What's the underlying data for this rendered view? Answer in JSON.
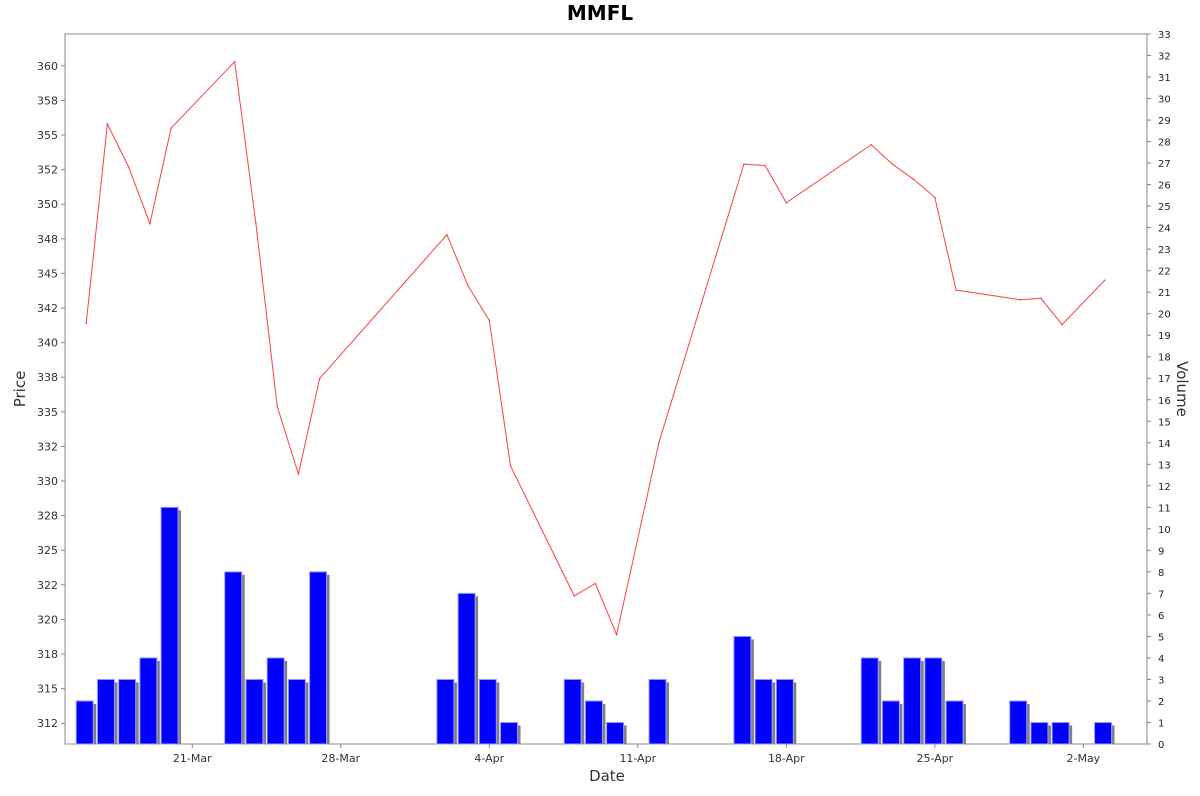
{
  "chart_data": {
    "type": "line",
    "title": "MMFL",
    "xlabel": "Date",
    "ylabel": "Price",
    "y2label": "Volume",
    "x_range": [
      "2022-03-15",
      "2022-05-05"
    ],
    "price_ylim": [
      311.0,
      362.3
    ],
    "volume_ylim": [
      0,
      33
    ],
    "grid": false,
    "x_tick_labels": [
      {
        "date": "2022-03-21",
        "label": "21-Mar"
      },
      {
        "date": "2022-03-28",
        "label": "28-Mar"
      },
      {
        "date": "2022-04-04",
        "label": "4-Apr"
      },
      {
        "date": "2022-04-11",
        "label": "11-Apr"
      },
      {
        "date": "2022-04-18",
        "label": "18-Apr"
      },
      {
        "date": "2022-04-25",
        "label": "25-Apr"
      },
      {
        "date": "2022-05-02",
        "label": "2-May"
      }
    ],
    "price_ticks": [
      {
        "value": 312.5,
        "label": "312"
      },
      {
        "value": 315.0,
        "label": "315"
      },
      {
        "value": 317.5,
        "label": "318"
      },
      {
        "value": 320.0,
        "label": "320"
      },
      {
        "value": 322.5,
        "label": "322"
      },
      {
        "value": 325.0,
        "label": "325"
      },
      {
        "value": 327.5,
        "label": "328"
      },
      {
        "value": 330.0,
        "label": "330"
      },
      {
        "value": 332.5,
        "label": "332"
      },
      {
        "value": 335.0,
        "label": "335"
      },
      {
        "value": 337.5,
        "label": "338"
      },
      {
        "value": 340.0,
        "label": "340"
      },
      {
        "value": 342.5,
        "label": "342"
      },
      {
        "value": 345.0,
        "label": "345"
      },
      {
        "value": 347.5,
        "label": "348"
      },
      {
        "value": 350.0,
        "label": "350"
      },
      {
        "value": 352.5,
        "label": "352"
      },
      {
        "value": 355.0,
        "label": "355"
      },
      {
        "value": 357.5,
        "label": "358"
      },
      {
        "value": 360.0,
        "label": "360"
      }
    ],
    "volume_ticks": [
      "0",
      "1",
      "2",
      "3",
      "4",
      "5",
      "6",
      "7",
      "8",
      "9",
      "10",
      "11",
      "12",
      "13",
      "14",
      "15",
      "16",
      "17",
      "18",
      "19",
      "20",
      "21",
      "22",
      "23",
      "24",
      "25",
      "26",
      "27",
      "28",
      "29",
      "30",
      "31",
      "32",
      "33"
    ],
    "colors": {
      "price_line": "#ff4040",
      "volume_bar": "#0000ff",
      "volume_bar_edge": "#9999ff",
      "volume_shadow": "#808080",
      "axis": "#888888"
    },
    "series": [
      {
        "kind": "price",
        "points": [
          {
            "date": "2022-03-16",
            "value": 341.4
          },
          {
            "date": "2022-03-17",
            "value": 355.8
          },
          {
            "date": "2022-03-18",
            "value": 352.7
          },
          {
            "date": "2022-03-19",
            "value": 348.6
          },
          {
            "date": "2022-03-20",
            "value": 355.5
          },
          {
            "date": "2022-03-23",
            "value": 360.3
          },
          {
            "date": "2022-03-24",
            "value": 348.6
          },
          {
            "date": "2022-03-25",
            "value": 335.4
          },
          {
            "date": "2022-03-26",
            "value": 330.5
          },
          {
            "date": "2022-03-27",
            "value": 337.4
          },
          {
            "date": "2022-04-02",
            "value": 347.8
          },
          {
            "date": "2022-04-03",
            "value": 344.1
          },
          {
            "date": "2022-04-04",
            "value": 341.6
          },
          {
            "date": "2022-04-05",
            "value": 331.1
          },
          {
            "date": "2022-04-08",
            "value": 321.7
          },
          {
            "date": "2022-04-09",
            "value": 322.6
          },
          {
            "date": "2022-04-10",
            "value": 318.9
          },
          {
            "date": "2022-04-12",
            "value": 332.8
          },
          {
            "date": "2022-04-16",
            "value": 352.9
          },
          {
            "date": "2022-04-17",
            "value": 352.8
          },
          {
            "date": "2022-04-18",
            "value": 350.1
          },
          {
            "date": "2022-04-22",
            "value": 354.3
          },
          {
            "date": "2022-04-23",
            "value": 352.9
          },
          {
            "date": "2022-04-24",
            "value": 351.8
          },
          {
            "date": "2022-04-25",
            "value": 350.5
          },
          {
            "date": "2022-04-26",
            "value": 343.8
          },
          {
            "date": "2022-04-29",
            "value": 343.1
          },
          {
            "date": "2022-04-30",
            "value": 343.2
          },
          {
            "date": "2022-05-01",
            "value": 341.3
          },
          {
            "date": "2022-05-03",
            "value": 344.5
          }
        ]
      },
      {
        "kind": "volume",
        "points": [
          {
            "date": "2022-03-16",
            "value": 2
          },
          {
            "date": "2022-03-17",
            "value": 3
          },
          {
            "date": "2022-03-18",
            "value": 3
          },
          {
            "date": "2022-03-19",
            "value": 4
          },
          {
            "date": "2022-03-20",
            "value": 11
          },
          {
            "date": "2022-03-23",
            "value": 8
          },
          {
            "date": "2022-03-24",
            "value": 3
          },
          {
            "date": "2022-03-25",
            "value": 4
          },
          {
            "date": "2022-03-26",
            "value": 3
          },
          {
            "date": "2022-03-27",
            "value": 8
          },
          {
            "date": "2022-04-02",
            "value": 3
          },
          {
            "date": "2022-04-03",
            "value": 7
          },
          {
            "date": "2022-04-04",
            "value": 3
          },
          {
            "date": "2022-04-05",
            "value": 1
          },
          {
            "date": "2022-04-08",
            "value": 3
          },
          {
            "date": "2022-04-09",
            "value": 2
          },
          {
            "date": "2022-04-10",
            "value": 1
          },
          {
            "date": "2022-04-12",
            "value": 3
          },
          {
            "date": "2022-04-16",
            "value": 5
          },
          {
            "date": "2022-04-17",
            "value": 3
          },
          {
            "date": "2022-04-18",
            "value": 3
          },
          {
            "date": "2022-04-22",
            "value": 4
          },
          {
            "date": "2022-04-23",
            "value": 2
          },
          {
            "date": "2022-04-24",
            "value": 4
          },
          {
            "date": "2022-04-25",
            "value": 4
          },
          {
            "date": "2022-04-26",
            "value": 2
          },
          {
            "date": "2022-04-29",
            "value": 2
          },
          {
            "date": "2022-04-30",
            "value": 1
          },
          {
            "date": "2022-05-01",
            "value": 1
          },
          {
            "date": "2022-05-03",
            "value": 1
          }
        ]
      }
    ]
  }
}
